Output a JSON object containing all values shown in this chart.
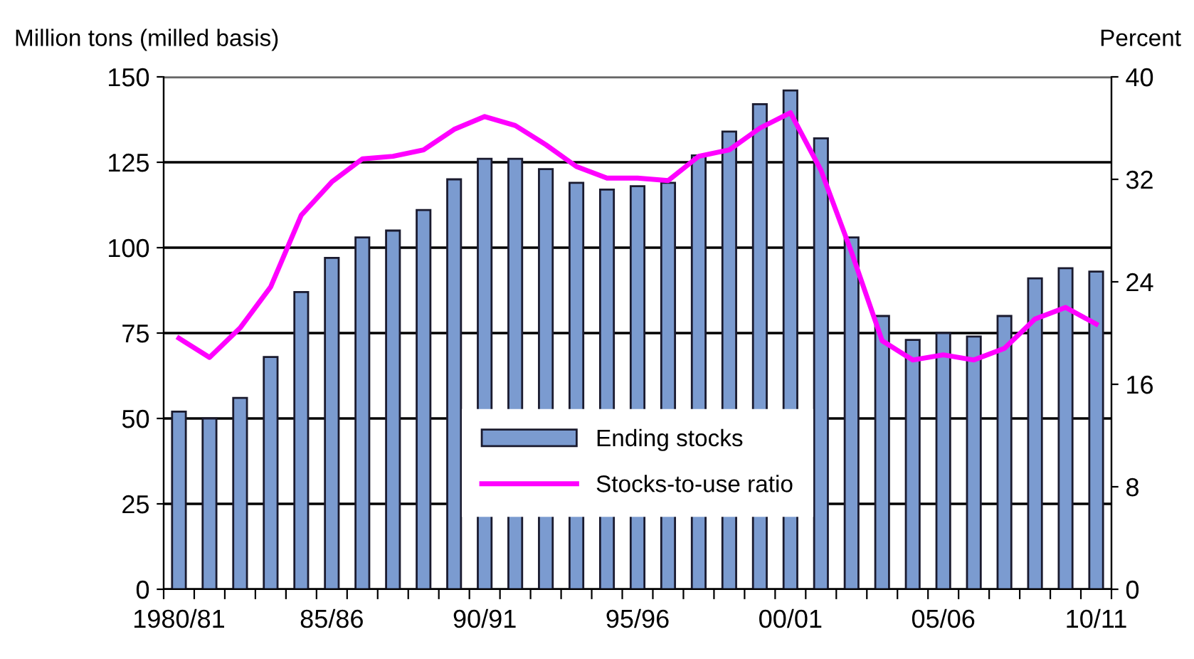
{
  "chart_data": {
    "type": "bar",
    "ylabel": "Million tons (milled basis)",
    "y2label": "Percent",
    "categories": [
      "1980/81",
      null,
      null,
      null,
      null,
      "85/86",
      null,
      null,
      null,
      null,
      "90/91",
      null,
      null,
      null,
      null,
      "95/96",
      null,
      null,
      null,
      null,
      "00/01",
      null,
      null,
      null,
      null,
      "05/06",
      null,
      null,
      null,
      null,
      "10/11"
    ],
    "series": [
      {
        "name": "Ending stocks",
        "color": "#7b9bd0",
        "values": [
          52,
          50,
          56,
          68,
          87,
          97,
          103,
          105,
          111,
          120,
          126,
          126,
          123,
          119,
          117,
          118,
          119,
          127,
          134,
          142,
          146,
          132,
          103,
          80,
          73,
          75,
          74,
          80,
          91,
          94,
          93
        ]
      },
      {
        "name": "Stocks-to-use ratio",
        "type": "line",
        "axis": "y2",
        "color": "#ff00ff",
        "values": [
          19.6,
          18.1,
          20.4,
          23.6,
          29.2,
          31.8,
          33.6,
          33.8,
          34.3,
          35.9,
          36.9,
          36.2,
          34.7,
          33.0,
          32.1,
          32.1,
          31.9,
          33.8,
          34.3,
          36.0,
          37.2,
          32.7,
          26.3,
          19.4,
          17.9,
          18.3,
          17.9,
          18.8,
          21.1,
          22.0,
          20.7
        ]
      }
    ],
    "ylim": [
      0,
      150
    ],
    "yticks": [
      0,
      25,
      50,
      75,
      100,
      125,
      150
    ],
    "y2lim": [
      0,
      40
    ],
    "y2ticks": [
      0,
      8,
      16,
      24,
      32,
      40
    ],
    "grid": "y",
    "legend": "bottom",
    "marker": "none",
    "line_style": "solid"
  }
}
